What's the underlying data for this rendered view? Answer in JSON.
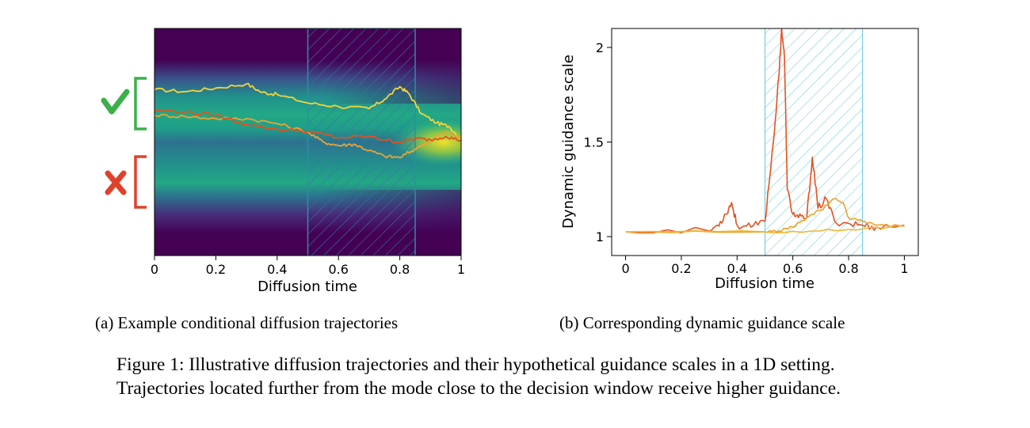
{
  "figure": {
    "caption_line1": "Figure 1: Illustrative diffusion trajectories and their hypothetical guidance scales in a 1D setting.",
    "caption_line2": "Trajectories located further from the mode close to the decision window receive higher guidance."
  },
  "panel_a": {
    "subcaption": "(a) Example conditional diffusion trajectories",
    "markers": {
      "accepted_icon": "checkmark-icon",
      "rejected_icon": "cross-icon",
      "accepted_color": "#3bb04a",
      "rejected_color": "#e0412b"
    },
    "colors": {
      "background": "#440154",
      "density": "#21918c",
      "hatch": "#3b6fb0",
      "window_edge": "#2b8fa0"
    }
  },
  "panel_b": {
    "subcaption": "(b) Corresponding dynamic guidance scale",
    "colors": {
      "hatch": "#66c7dc"
    }
  },
  "chart_data": [
    {
      "type": "line",
      "panel": "a",
      "xlabel": "Diffusion time",
      "ylabel": "",
      "xlim": [
        0,
        1
      ],
      "ylim": [
        -1.6,
        1.6
      ],
      "xticks": [
        "0",
        "0.2",
        "0.4",
        "0.6",
        "0.8",
        "1"
      ],
      "grid": false,
      "background": "viridis density heatmap with two modes converging toward a single mode",
      "decision_window": [
        0.5,
        0.85
      ],
      "series": [
        {
          "color": "#f5d53a",
          "x": [
            0,
            0.1,
            0.2,
            0.3,
            0.35,
            0.4,
            0.5,
            0.6,
            0.7,
            0.75,
            0.8,
            0.83,
            0.87,
            0.92,
            0.96,
            1.0
          ],
          "y": [
            0.74,
            0.71,
            0.76,
            0.82,
            0.7,
            0.67,
            0.55,
            0.5,
            0.47,
            0.6,
            0.78,
            0.68,
            0.4,
            0.27,
            0.22,
            0.05
          ]
        },
        {
          "color": "#eba433",
          "x": [
            0,
            0.1,
            0.2,
            0.3,
            0.4,
            0.5,
            0.55,
            0.6,
            0.65,
            0.7,
            0.75,
            0.8,
            0.85,
            0.9,
            0.95,
            1.0
          ],
          "y": [
            0.38,
            0.36,
            0.33,
            0.33,
            0.26,
            0.14,
            0.0,
            -0.05,
            -0.03,
            -0.12,
            -0.2,
            -0.22,
            -0.1,
            0.02,
            0.15,
            0.05
          ]
        },
        {
          "color": "#e2521d",
          "x": [
            0,
            0.1,
            0.2,
            0.3,
            0.4,
            0.5,
            0.6,
            0.7,
            0.75,
            0.8,
            0.85,
            0.9,
            0.95,
            1.0
          ],
          "y": [
            0.45,
            0.42,
            0.38,
            0.25,
            0.18,
            0.15,
            0.06,
            0.08,
            0.03,
            0.0,
            0.05,
            0.03,
            0.08,
            0.02
          ]
        }
      ]
    },
    {
      "type": "line",
      "panel": "b",
      "xlabel": "Diffusion time",
      "ylabel": "Dynamic guidance scale",
      "xlim": [
        -0.05,
        1.05
      ],
      "ylim": [
        0.9,
        2.1
      ],
      "xticks": [
        "0",
        "0.2",
        "0.4",
        "0.6",
        "0.8",
        "1"
      ],
      "yticks": [
        "1",
        "1.5",
        "2"
      ],
      "ytick_values": [
        1,
        1.5,
        2
      ],
      "grid": false,
      "decision_window": [
        0.5,
        0.85
      ],
      "series": [
        {
          "color": "#e5511f",
          "x": [
            0,
            0.3,
            0.33,
            0.36,
            0.38,
            0.4,
            0.45,
            0.5,
            0.53,
            0.55,
            0.56,
            0.57,
            0.58,
            0.6,
            0.62,
            0.65,
            0.67,
            0.69,
            0.72,
            0.75,
            0.8,
            0.85,
            0.9,
            1.0
          ],
          "y": [
            1.025,
            1.03,
            1.06,
            1.12,
            1.18,
            1.06,
            1.05,
            1.08,
            1.5,
            1.85,
            2.1,
            1.95,
            1.25,
            1.12,
            1.1,
            1.1,
            1.42,
            1.15,
            1.2,
            1.08,
            1.07,
            1.06,
            1.05,
            1.06
          ]
        },
        {
          "color": "#eba22a",
          "x": [
            0,
            0.5,
            0.55,
            0.6,
            0.65,
            0.7,
            0.75,
            0.78,
            0.8,
            0.85,
            0.9,
            1.0
          ],
          "y": [
            1.025,
            1.025,
            1.03,
            1.05,
            1.1,
            1.14,
            1.2,
            1.18,
            1.1,
            1.08,
            1.06,
            1.055
          ]
        },
        {
          "color": "#f0b52f",
          "x": [
            0,
            0.5,
            0.7,
            0.85,
            1.0
          ],
          "y": [
            1.025,
            1.025,
            1.03,
            1.04,
            1.055
          ]
        }
      ]
    }
  ]
}
